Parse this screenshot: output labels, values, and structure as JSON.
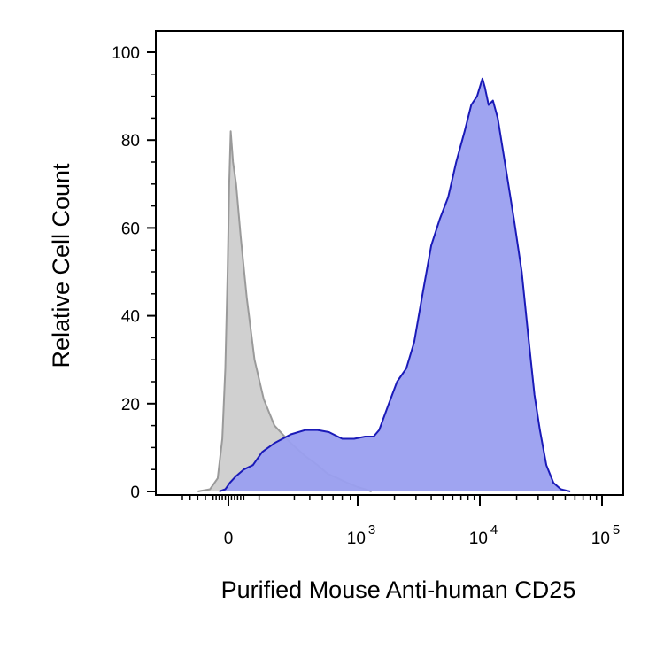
{
  "chart_data": {
    "type": "area",
    "title": "",
    "xlabel": "Purified Mouse Anti-human CD25",
    "ylabel": "Relative Cell Count",
    "x_scale": "biexponential",
    "x_ticks": [
      {
        "value": 0,
        "base": "0",
        "exp": ""
      },
      {
        "value": 1000,
        "base": "10",
        "exp": "3"
      },
      {
        "value": 10000,
        "base": "10",
        "exp": "4"
      },
      {
        "value": 100000,
        "base": "10",
        "exp": "5"
      }
    ],
    "y_ticks": [
      {
        "value": 0,
        "label": "0"
      },
      {
        "value": 20,
        "label": "20"
      },
      {
        "value": 40,
        "label": "40"
      },
      {
        "value": 60,
        "label": "60"
      },
      {
        "value": 80,
        "label": "80"
      },
      {
        "value": 100,
        "label": "100"
      }
    ],
    "ylim": [
      0,
      100
    ],
    "grid": false,
    "legend": "none",
    "series": [
      {
        "fill": "#d0d0d0",
        "stroke": "#9a9a9a",
        "points": [
          [
            -200,
            0
          ],
          [
            -120,
            0.5
          ],
          [
            -70,
            3
          ],
          [
            -40,
            12
          ],
          [
            -20,
            28
          ],
          [
            -5,
            50
          ],
          [
            5,
            70
          ],
          [
            15,
            82
          ],
          [
            30,
            75
          ],
          [
            50,
            70
          ],
          [
            80,
            58
          ],
          [
            120,
            44
          ],
          [
            170,
            30
          ],
          [
            230,
            21
          ],
          [
            300,
            15
          ],
          [
            380,
            11
          ],
          [
            470,
            8
          ],
          [
            560,
            6
          ],
          [
            650,
            4
          ],
          [
            750,
            3
          ],
          [
            860,
            2
          ],
          [
            1000,
            1
          ],
          [
            1150,
            0.5
          ],
          [
            1300,
            0
          ]
        ]
      },
      {
        "fill": "#9a9ff0",
        "stroke": "#1a1ab8",
        "points": [
          [
            -60,
            0
          ],
          [
            -20,
            0.5
          ],
          [
            10,
            2
          ],
          [
            50,
            3.5
          ],
          [
            100,
            5
          ],
          [
            160,
            6
          ],
          [
            220,
            9
          ],
          [
            300,
            11
          ],
          [
            380,
            13
          ],
          [
            470,
            14
          ],
          [
            560,
            14
          ],
          [
            660,
            13.5
          ],
          [
            800,
            12
          ],
          [
            950,
            12
          ],
          [
            1150,
            12.5
          ],
          [
            1350,
            12.5
          ],
          [
            1500,
            14
          ],
          [
            1800,
            20
          ],
          [
            2100,
            25
          ],
          [
            2500,
            28
          ],
          [
            2900,
            34
          ],
          [
            3400,
            45
          ],
          [
            4000,
            56
          ],
          [
            4700,
            62
          ],
          [
            5500,
            67
          ],
          [
            6400,
            75
          ],
          [
            7500,
            82
          ],
          [
            8500,
            88
          ],
          [
            9500,
            90
          ],
          [
            10500,
            94
          ],
          [
            11000,
            92
          ],
          [
            11800,
            88
          ],
          [
            12800,
            89
          ],
          [
            14000,
            85
          ],
          [
            16000,
            75
          ],
          [
            19000,
            62
          ],
          [
            22000,
            50
          ],
          [
            25000,
            35
          ],
          [
            28000,
            22
          ],
          [
            31000,
            14
          ],
          [
            35000,
            6
          ],
          [
            40000,
            2
          ],
          [
            46000,
            0.5
          ],
          [
            55000,
            0
          ]
        ]
      }
    ]
  }
}
